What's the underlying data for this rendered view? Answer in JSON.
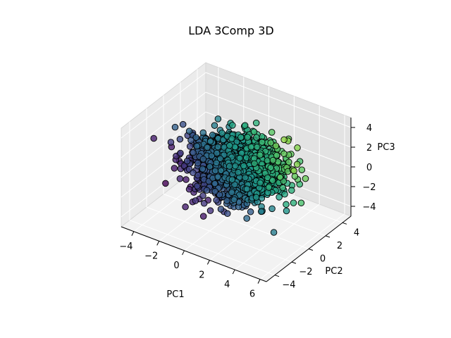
{
  "chart_data": {
    "type": "scatter",
    "projection": "3d",
    "title": "LDA 3Comp 3D",
    "xlabel": "PC1",
    "ylabel": "PC2",
    "zlabel": "PC3",
    "xlim": [
      -5,
      6.5
    ],
    "ylim": [
      -5,
      5
    ],
    "zlim": [
      -5,
      5
    ],
    "xticks": [
      "−4",
      "−2",
      "0",
      "2",
      "4",
      "6"
    ],
    "xtick_values": [
      -4,
      -2,
      0,
      2,
      4,
      6
    ],
    "yticks": [
      "−4",
      "−2",
      "0",
      "2",
      "4"
    ],
    "ytick_values": [
      -4,
      -2,
      0,
      2,
      4
    ],
    "zticks": [
      "−4",
      "−2",
      "0",
      "2",
      "4"
    ],
    "ztick_values": [
      -4,
      -2,
      0,
      2,
      4
    ],
    "grid": true,
    "colormap": "viridis",
    "marker_edge_color": "#000000",
    "approx_point_count": 1500,
    "distribution": {
      "x_mean": 0.8,
      "x_std": 1.6,
      "y_mean": 0.3,
      "y_std": 1.3,
      "z_mean": 0.2,
      "z_std": 1.2
    },
    "colors": {
      "pane_left": "#ebebeb",
      "pane_right": "#e3e3e3",
      "pane_floor": "#f2f2f2",
      "grid": "#ffffff"
    }
  }
}
